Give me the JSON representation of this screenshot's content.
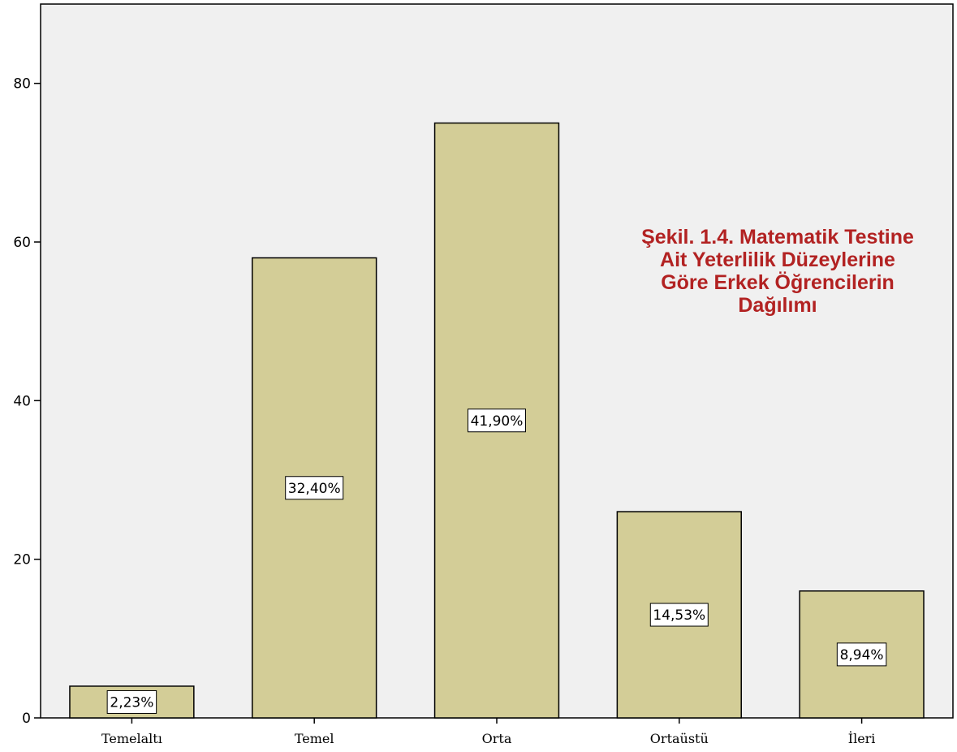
{
  "chart_data": {
    "type": "bar",
    "categories": [
      "Temelaltı",
      "Temel",
      "Orta",
      "Ortaüstü",
      "İleri"
    ],
    "values": [
      4,
      58,
      75,
      26,
      16
    ],
    "data_labels": [
      "2,23%",
      "32,40%",
      "41,90%",
      "14,53%",
      "8,94%"
    ],
    "title": "",
    "xlabel": "",
    "ylabel": "",
    "ylim": [
      0,
      90
    ],
    "yticks": [
      0,
      20,
      40,
      60,
      80
    ],
    "ytick_labels": [
      "0",
      "20",
      "40",
      "60",
      "80"
    ],
    "grid": false,
    "annotation": {
      "lines": [
        "Şekil. 1.4. Matematik Testine",
        "Ait Yeterlilik Düzeylerine",
        "Göre Erkek Öğrencilerin",
        "Dağılımı"
      ],
      "color": "#b22222"
    },
    "colors": {
      "bar_fill": "#d3cd97",
      "plot_background": "#f0f0f0",
      "axis": "#000000",
      "label_box_fill": "#ffffff"
    }
  }
}
